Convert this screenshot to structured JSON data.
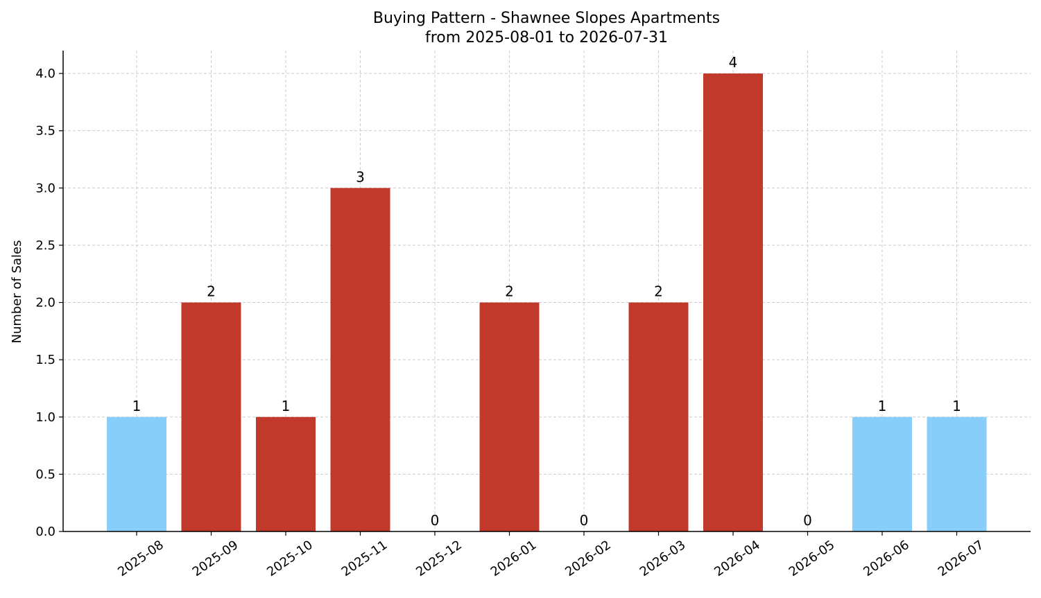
{
  "chart_data": {
    "type": "bar",
    "title": "Buying Pattern - Shawnee Slopes Apartments",
    "subtitle": "from 2025-08-01 to 2026-07-31",
    "xlabel": "",
    "ylabel": "Number of Sales",
    "categories": [
      "2025-08",
      "2025-09",
      "2025-10",
      "2025-11",
      "2025-12",
      "2026-01",
      "2026-02",
      "2026-03",
      "2026-04",
      "2026-05",
      "2026-06",
      "2026-07"
    ],
    "values": [
      1,
      2,
      1,
      3,
      0,
      2,
      0,
      2,
      4,
      0,
      1,
      1
    ],
    "data_labels": [
      "1",
      "2",
      "1",
      "3",
      "0",
      "2",
      "0",
      "2",
      "4",
      "0",
      "1",
      "1"
    ],
    "bar_colors": [
      "#87CEFA",
      "#C0392B",
      "#C0392B",
      "#C0392B",
      "#C0392B",
      "#C0392B",
      "#C0392B",
      "#C0392B",
      "#C0392B",
      "#C0392B",
      "#87CEFA",
      "#87CEFA"
    ],
    "ylim": [
      0,
      4.2
    ],
    "yticks": [
      "0.0",
      "0.5",
      "1.0",
      "1.5",
      "2.0",
      "2.5",
      "3.0",
      "3.5",
      "4.0"
    ],
    "grid": true,
    "x_tick_rotation": "35-degree",
    "legend": "none"
  }
}
